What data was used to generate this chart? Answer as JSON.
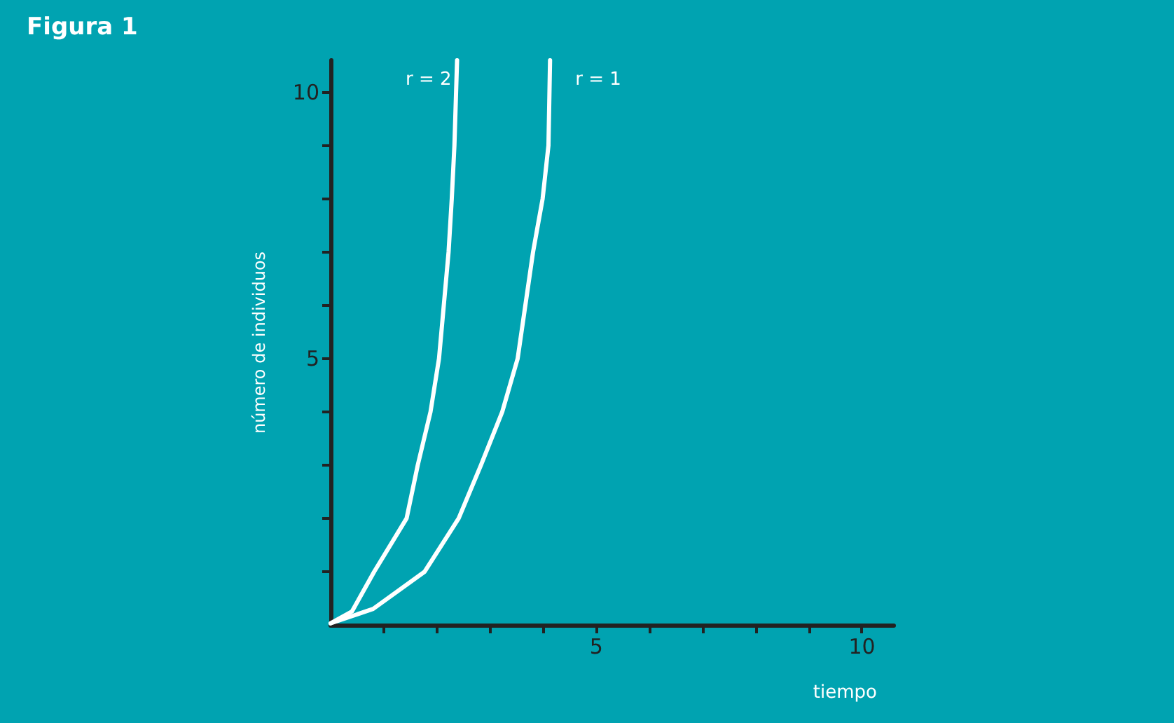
{
  "chart_data": {
    "type": "line",
    "title": "Figura 1",
    "xlabel": "tiempo",
    "ylabel": "número de individuos",
    "xlim": [
      0,
      10.6
    ],
    "ylim": [
      0,
      10.6
    ],
    "xticks": [
      {
        "value": 1,
        "label": null
      },
      {
        "value": 2,
        "label": null
      },
      {
        "value": 3,
        "label": null
      },
      {
        "value": 4,
        "label": null
      },
      5,
      {
        "value": 6,
        "label": null
      },
      {
        "value": 7,
        "label": null
      },
      {
        "value": 8,
        "label": null
      },
      {
        "value": 9,
        "label": null
      },
      10
    ],
    "yticks": [
      {
        "value": 1,
        "label": null
      },
      {
        "value": 2,
        "label": null
      },
      {
        "value": 3,
        "label": null
      },
      {
        "value": 4,
        "label": null
      },
      5,
      {
        "value": 6,
        "label": null
      },
      {
        "value": 7,
        "label": null
      },
      {
        "value": 8,
        "label": null
      },
      {
        "value": 9,
        "label": null
      },
      10
    ],
    "grid": false,
    "legend": false,
    "marker": "none",
    "line_style": "solid",
    "series": [
      {
        "name": "r = 2",
        "color": "#ffffff",
        "x": [
          0,
          0.4,
          0.82,
          1.43,
          1.64,
          1.88,
          2.04,
          2.22,
          2.28,
          2.33,
          2.38
        ],
        "values": [
          0.03,
          0.25,
          1,
          2,
          3,
          4,
          5,
          7,
          8,
          9,
          10.6
        ]
      },
      {
        "name": "r = 1",
        "color": "#ffffff",
        "x": [
          0,
          0.8,
          1.77,
          2.41,
          2.83,
          3.23,
          3.52,
          3.81,
          3.99,
          4.1,
          4.13
        ],
        "values": [
          0.03,
          0.3,
          1,
          2,
          3,
          4,
          5,
          7,
          8,
          9,
          10.6
        ]
      }
    ]
  }
}
